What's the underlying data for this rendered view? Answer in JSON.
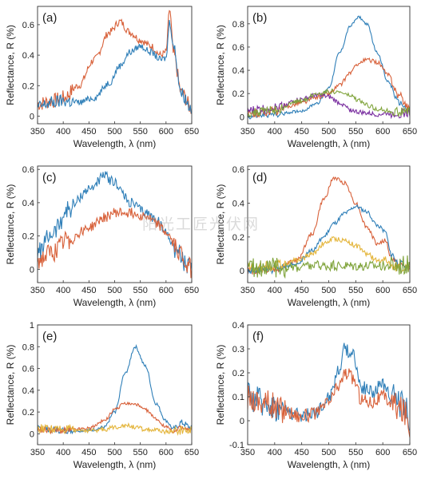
{
  "watermark_text": "阳光工匠光伏网",
  "colors": {
    "blue": "#2f7fb8",
    "orange": "#d8613a",
    "purple": "#7a2fa0",
    "green": "#7fa33a",
    "yellow": "#e4b53b"
  },
  "chart_data": [
    {
      "type": "line",
      "panel_label": "(a)",
      "xlabel": "Wavelength, λ (nm)",
      "ylabel": "Reflectance, R (%)",
      "xlim": [
        350,
        650
      ],
      "ylim": [
        -0.05,
        0.72
      ],
      "x_ticks": [
        350,
        400,
        450,
        500,
        550,
        600,
        650
      ],
      "y_ticks": [
        0,
        0.2,
        0.4,
        0.6
      ],
      "x": [
        350,
        380,
        400,
        430,
        460,
        490,
        510,
        530,
        550,
        570,
        590,
        600,
        607,
        615,
        630,
        650
      ],
      "series": [
        {
          "color": "orange",
          "noise": 0.025,
          "values": [
            0.08,
            0.1,
            0.12,
            0.2,
            0.37,
            0.55,
            0.62,
            0.55,
            0.5,
            0.46,
            0.4,
            0.42,
            0.7,
            0.4,
            0.15,
            0.05
          ]
        },
        {
          "color": "blue",
          "noise": 0.022,
          "values": [
            0.06,
            0.09,
            0.1,
            0.09,
            0.12,
            0.22,
            0.33,
            0.42,
            0.46,
            0.42,
            0.37,
            0.38,
            0.62,
            0.45,
            0.15,
            0.05
          ]
        }
      ]
    },
    {
      "type": "line",
      "panel_label": "(b)",
      "xlabel": "Wavelength, λ (nm)",
      "ylabel": "Reflectance, R (%)",
      "xlim": [
        350,
        650
      ],
      "ylim": [
        -0.06,
        0.95
      ],
      "x_ticks": [
        350,
        400,
        450,
        500,
        550,
        600,
        650
      ],
      "y_ticks": [
        0,
        0.2,
        0.4,
        0.6,
        0.8
      ],
      "x": [
        350,
        400,
        450,
        480,
        500,
        520,
        540,
        555,
        570,
        590,
        610,
        630,
        650
      ],
      "series": [
        {
          "color": "blue",
          "noise": 0.012,
          "values": [
            0.0,
            0.02,
            0.05,
            0.12,
            0.25,
            0.55,
            0.78,
            0.86,
            0.8,
            0.55,
            0.3,
            0.12,
            0.05
          ]
        },
        {
          "color": "orange",
          "noise": 0.018,
          "values": [
            0.02,
            0.05,
            0.12,
            0.17,
            0.2,
            0.27,
            0.38,
            0.46,
            0.49,
            0.47,
            0.36,
            0.18,
            0.07
          ]
        },
        {
          "color": "purple",
          "noise": 0.02,
          "values": [
            0.05,
            0.08,
            0.15,
            0.19,
            0.17,
            0.12,
            0.06,
            0.04,
            0.03,
            0.02,
            0.03,
            0.03,
            0.03
          ]
        },
        {
          "color": "green",
          "noise": 0.02,
          "values": [
            0.03,
            0.06,
            0.14,
            0.2,
            0.22,
            0.21,
            0.18,
            0.14,
            0.1,
            0.07,
            0.05,
            0.04,
            0.05
          ]
        }
      ]
    },
    {
      "type": "line",
      "panel_label": "(c)",
      "xlabel": "Wavelength, λ (nm)",
      "ylabel": "Reflectance, R (%)",
      "xlim": [
        350,
        650
      ],
      "ylim": [
        -0.08,
        0.62
      ],
      "x_ticks": [
        350,
        400,
        450,
        500,
        550,
        600,
        650
      ],
      "y_ticks": [
        0,
        0.2,
        0.4,
        0.6
      ],
      "x": [
        350,
        380,
        410,
        450,
        480,
        500,
        530,
        560,
        580,
        600,
        620,
        640,
        650
      ],
      "series": [
        {
          "color": "blue",
          "noise": 0.03,
          "values": [
            0.1,
            0.22,
            0.36,
            0.48,
            0.56,
            0.52,
            0.4,
            0.34,
            0.3,
            0.22,
            0.12,
            0.02,
            -0.02
          ]
        },
        {
          "color": "orange",
          "noise": 0.03,
          "values": [
            0.05,
            0.1,
            0.18,
            0.25,
            0.31,
            0.34,
            0.34,
            0.32,
            0.28,
            0.22,
            0.13,
            0.04,
            0.0
          ]
        }
      ]
    },
    {
      "type": "line",
      "panel_label": "(d)",
      "xlabel": "Wavelength, λ (nm)",
      "ylabel": "Reflectance, R (%)",
      "xlim": [
        350,
        650
      ],
      "ylim": [
        -0.07,
        0.62
      ],
      "x_ticks": [
        350,
        400,
        450,
        500,
        550,
        600,
        650
      ],
      "y_ticks": [
        0,
        0.2,
        0.4,
        0.6
      ],
      "x": [
        350,
        400,
        440,
        470,
        490,
        510,
        530,
        550,
        570,
        590,
        605,
        615,
        630,
        650
      ],
      "series": [
        {
          "color": "orange",
          "noise": 0.012,
          "values": [
            0.0,
            0.01,
            0.06,
            0.22,
            0.42,
            0.55,
            0.52,
            0.4,
            0.26,
            0.16,
            0.18,
            0.08,
            0.03,
            0.02
          ]
        },
        {
          "color": "blue",
          "noise": 0.012,
          "values": [
            0.0,
            0.01,
            0.04,
            0.12,
            0.2,
            0.28,
            0.34,
            0.38,
            0.35,
            0.27,
            0.23,
            0.1,
            0.04,
            0.02
          ]
        },
        {
          "color": "yellow",
          "noise": 0.015,
          "values": [
            0.02,
            0.03,
            0.06,
            0.1,
            0.16,
            0.19,
            0.18,
            0.15,
            0.1,
            0.06,
            0.07,
            0.03,
            0.02,
            0.02
          ]
        },
        {
          "color": "green",
          "noise": 0.03,
          "values": [
            0.02,
            0.02,
            0.02,
            0.03,
            0.03,
            0.03,
            0.03,
            0.03,
            0.03,
            0.03,
            0.03,
            0.03,
            0.03,
            0.04
          ]
        }
      ]
    },
    {
      "type": "line",
      "panel_label": "(e)",
      "xlabel": "Wavelength, λ (nm)",
      "ylabel": "Reflectance, R (%)",
      "xlim": [
        350,
        650
      ],
      "ylim": [
        -0.1,
        1.0
      ],
      "x_ticks": [
        350,
        400,
        450,
        500,
        550,
        600,
        650
      ],
      "y_ticks": [
        0,
        0.2,
        0.4,
        0.6,
        0.8,
        1
      ],
      "x": [
        350,
        400,
        450,
        480,
        500,
        520,
        540,
        560,
        580,
        600,
        615,
        630,
        650
      ],
      "series": [
        {
          "color": "blue",
          "noise": 0.015,
          "values": [
            0.05,
            0.03,
            0.03,
            0.06,
            0.2,
            0.55,
            0.8,
            0.62,
            0.28,
            0.12,
            0.04,
            0.1,
            0.05
          ]
        },
        {
          "color": "orange",
          "noise": 0.015,
          "values": [
            0.04,
            0.03,
            0.05,
            0.12,
            0.22,
            0.28,
            0.27,
            0.22,
            0.14,
            0.06,
            0.02,
            0.05,
            0.03
          ]
        },
        {
          "color": "yellow",
          "noise": 0.02,
          "values": [
            0.05,
            0.04,
            0.03,
            0.04,
            0.06,
            0.08,
            0.06,
            0.04,
            0.03,
            0.02,
            0.02,
            0.03,
            0.03
          ]
        }
      ]
    },
    {
      "type": "line",
      "panel_label": "(f)",
      "xlabel": "Wavelength, λ (nm)",
      "ylabel": "Reflectance, R (%)",
      "xlim": [
        350,
        650
      ],
      "ylim": [
        -0.1,
        0.4
      ],
      "x_ticks": [
        350,
        400,
        450,
        500,
        550,
        600,
        650
      ],
      "y_ticks": [
        -0.1,
        0,
        0.1,
        0.2,
        0.3,
        0.4
      ],
      "x": [
        350,
        380,
        410,
        450,
        480,
        500,
        520,
        530,
        545,
        560,
        580,
        600,
        620,
        640,
        650
      ],
      "series": [
        {
          "color": "blue",
          "noise": 0.03,
          "values": [
            0.1,
            0.08,
            0.05,
            0.02,
            0.04,
            0.1,
            0.22,
            0.3,
            0.28,
            0.14,
            0.12,
            0.15,
            0.1,
            0.06,
            0.0
          ]
        },
        {
          "color": "orange",
          "noise": 0.03,
          "values": [
            0.1,
            0.08,
            0.05,
            0.02,
            0.03,
            0.08,
            0.15,
            0.2,
            0.18,
            0.09,
            0.08,
            0.1,
            0.07,
            0.04,
            -0.02
          ]
        }
      ]
    }
  ]
}
